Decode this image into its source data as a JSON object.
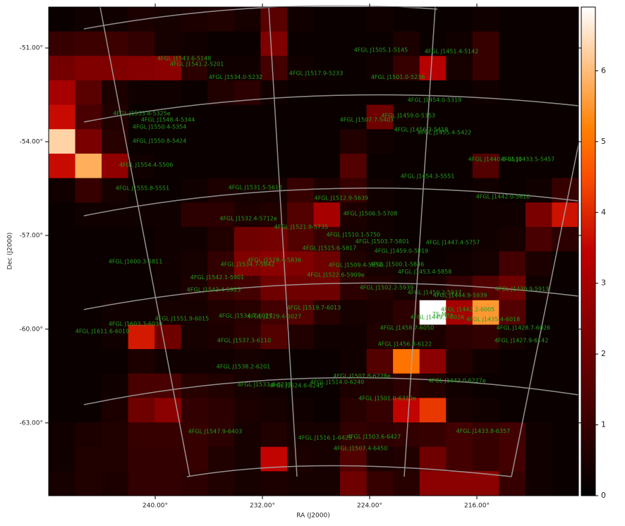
{
  "chart_data": {
    "type": "heatmap",
    "xlabel": "RA (J2000)",
    "ylabel": "Dec (J2000)",
    "xlim": [
      247.95,
      208.42
    ],
    "ylim": [
      -49.69,
      -65.33
    ],
    "xticks": [
      {
        "value": 240,
        "label": "240.00°"
      },
      {
        "value": 232,
        "label": "232.00°"
      },
      {
        "value": 224,
        "label": "224.00°"
      },
      {
        "value": 216,
        "label": "216.00°"
      }
    ],
    "yticks": [
      {
        "value": -51,
        "label": "-51.00°"
      },
      {
        "value": -54,
        "label": "-54.00°"
      },
      {
        "value": -57,
        "label": "-57.00°"
      },
      {
        "value": -60,
        "label": "-60.00°"
      },
      {
        "value": -63,
        "label": "-63.00°"
      }
    ],
    "colormap": "gist_heat",
    "zlim": [
      0,
      6.9
    ],
    "zticks": [
      0,
      1,
      2,
      3,
      4,
      5,
      6
    ],
    "z": [
      [
        0.2,
        0.3,
        0.3,
        0.5,
        0.4,
        0.5,
        0.6,
        0.4,
        1.6,
        0.3,
        0.2,
        0.2,
        0.3,
        0.2,
        0.2,
        0.2,
        0.3,
        0.2,
        0.2,
        0.2
      ],
      [
        1.0,
        1.1,
        1.1,
        0.9,
        0.4,
        0.3,
        0.2,
        0.2,
        2.3,
        0.2,
        0.2,
        0.2,
        0.2,
        0.5,
        0.2,
        0.3,
        1.0,
        0.2,
        0.2,
        0.2
      ],
      [
        2.1,
        2.3,
        2.3,
        2.4,
        2.5,
        0.8,
        0.3,
        0.3,
        1.2,
        0.3,
        0.2,
        0.2,
        0.3,
        1.0,
        3.3,
        0.4,
        1.0,
        0.2,
        0.2,
        0.2
      ],
      [
        3.0,
        1.6,
        0.5,
        0.3,
        0.3,
        0.2,
        0.6,
        0.8,
        0.3,
        0.2,
        0.2,
        0.2,
        0.2,
        0.2,
        0.2,
        0.2,
        0.3,
        0.2,
        0.2,
        0.2
      ],
      [
        3.6,
        1.3,
        0.6,
        0.2,
        0.2,
        0.2,
        0.2,
        0.2,
        0.2,
        0.2,
        0.2,
        0.2,
        2.0,
        0.3,
        0.2,
        0.2,
        0.2,
        0.2,
        0.2,
        0.2
      ],
      [
        6.3,
        2.2,
        0.7,
        0.2,
        0.2,
        0.2,
        0.2,
        0.2,
        0.2,
        0.2,
        0.2,
        0.6,
        0.3,
        0.2,
        0.2,
        0.2,
        0.2,
        0.2,
        0.2,
        0.2
      ],
      [
        3.6,
        5.8,
        2.6,
        0.3,
        0.2,
        0.2,
        0.2,
        0.2,
        0.2,
        0.2,
        0.2,
        1.5,
        0.2,
        0.2,
        0.2,
        0.2,
        1.5,
        0.2,
        0.2,
        0.2
      ],
      [
        0.3,
        1.0,
        0.4,
        0.2,
        0.2,
        0.3,
        0.5,
        0.4,
        0.4,
        1.0,
        0.5,
        1.0,
        0.3,
        0.2,
        0.2,
        0.2,
        0.3,
        0.2,
        0.3,
        1.0
      ],
      [
        0.2,
        0.3,
        0.3,
        0.3,
        0.3,
        0.8,
        0.8,
        0.5,
        0.6,
        1.5,
        3.0,
        0.5,
        0.3,
        0.2,
        0.2,
        0.2,
        0.3,
        0.3,
        2.2,
        3.7
      ],
      [
        0.2,
        0.2,
        0.2,
        0.2,
        0.3,
        0.3,
        0.6,
        2.0,
        2.1,
        1.5,
        1.0,
        0.4,
        0.3,
        0.2,
        0.2,
        0.2,
        0.3,
        0.4,
        1.3,
        0.8
      ],
      [
        0.2,
        0.2,
        0.2,
        0.2,
        0.3,
        0.4,
        0.9,
        2.3,
        2.5,
        2.3,
        2.0,
        0.6,
        0.4,
        0.3,
        0.2,
        0.3,
        0.4,
        1.2,
        0.5,
        0.2
      ],
      [
        0.2,
        0.2,
        0.2,
        0.2,
        0.3,
        0.5,
        1.0,
        1.2,
        2.0,
        2.0,
        2.0,
        0.8,
        0.6,
        0.4,
        0.5,
        0.9,
        1.5,
        2.0,
        0.3,
        0.2
      ],
      [
        0.2,
        0.2,
        0.3,
        0.3,
        0.4,
        0.4,
        0.6,
        0.7,
        1.2,
        1.5,
        0.7,
        0.4,
        0.5,
        0.8,
        6.9,
        3.0,
        5.5,
        1.5,
        0.2,
        0.2
      ],
      [
        0.2,
        0.2,
        0.3,
        3.8,
        2.0,
        0.4,
        0.5,
        0.8,
        1.5,
        0.6,
        0.3,
        0.3,
        0.6,
        0.6,
        0.5,
        0.8,
        0.9,
        0.4,
        0.2,
        0.2
      ],
      [
        0.2,
        0.2,
        0.2,
        0.5,
        0.3,
        0.3,
        0.3,
        0.4,
        0.3,
        0.2,
        0.2,
        0.3,
        1.5,
        5.0,
        2.5,
        0.6,
        0.3,
        0.2,
        0.2,
        0.2
      ],
      [
        0.2,
        0.2,
        0.3,
        1.3,
        1.3,
        0.7,
        0.6,
        0.4,
        0.3,
        0.2,
        0.2,
        0.5,
        0.6,
        0.8,
        0.6,
        0.3,
        0.2,
        0.2,
        0.2,
        0.2
      ],
      [
        0.2,
        0.2,
        0.5,
        2.0,
        2.5,
        0.9,
        0.8,
        0.5,
        0.4,
        0.3,
        0.2,
        0.7,
        1.0,
        3.5,
        4.2,
        0.4,
        0.3,
        0.2,
        0.2,
        0.2
      ],
      [
        0.3,
        0.5,
        0.6,
        1.0,
        1.0,
        1.0,
        0.8,
        0.4,
        0.6,
        0.4,
        0.4,
        0.9,
        0.8,
        0.9,
        1.0,
        1.2,
        1.0,
        1.2,
        0.3,
        0.2
      ],
      [
        0.3,
        0.6,
        0.6,
        0.9,
        0.9,
        1.0,
        0.6,
        0.4,
        3.5,
        0.5,
        0.4,
        1.5,
        0.5,
        0.6,
        2.0,
        1.2,
        1.0,
        1.2,
        0.3,
        0.2
      ],
      [
        0.4,
        0.6,
        0.5,
        0.9,
        0.9,
        0.8,
        0.6,
        0.4,
        0.5,
        0.4,
        0.4,
        2.0,
        1.0,
        0.7,
        2.5,
        2.5,
        2.5,
        1.0,
        0.3,
        0.2
      ]
    ],
    "annotations": [
      {
        "text": "4FGL J1543.6-5148",
        "ra": 237.84,
        "dec": -51.34
      },
      {
        "text": "4FGL J1541.2-5201",
        "ra": 236.89,
        "dec": -51.52
      },
      {
        "text": "4FGL J1534.0-5232",
        "ra": 234.0,
        "dec": -51.93
      },
      {
        "text": "4FGL J1517.9-5233",
        "ra": 228.0,
        "dec": -51.81
      },
      {
        "text": "4FGL J1505.1-5145",
        "ra": 223.16,
        "dec": -51.07
      },
      {
        "text": "4FGL J1451.4-5142",
        "ra": 217.89,
        "dec": -51.11
      },
      {
        "text": "4FGL J1501.0-5236",
        "ra": 221.89,
        "dec": -51.93
      },
      {
        "text": "4FGL J1454.0-5319",
        "ra": 219.16,
        "dec": -52.67
      },
      {
        "text": "4FGL J1553.8-5325e",
        "ra": 241.0,
        "dec": -53.1
      },
      {
        "text": "4FGL J1548.4-5344",
        "ra": 239.05,
        "dec": -53.3
      },
      {
        "text": "4FGL J1550.4-5354",
        "ra": 239.68,
        "dec": -53.53
      },
      {
        "text": "4FGL J1459.0-5353",
        "ra": 221.11,
        "dec": -53.17
      },
      {
        "text": "4FGL J1507.7-5403",
        "ra": 224.21,
        "dec": -53.3
      },
      {
        "text": "4FGL J1456.3-5418",
        "ra": 220.16,
        "dec": -53.62
      },
      {
        "text": "4FGL J1455.4-5422",
        "ra": 218.42,
        "dec": -53.71
      },
      {
        "text": "4FGL J1550.8-5424",
        "ra": 239.68,
        "dec": -53.98
      },
      {
        "text": "4FGL J1554.4-5506",
        "ra": 240.68,
        "dec": -54.75
      },
      {
        "text": "4FGL J1440.6-5510",
        "ra": 214.63,
        "dec": -54.57
      },
      {
        "text": "4FGL J1433.5-5457",
        "ra": 212.21,
        "dec": -54.57
      },
      {
        "text": "4FGL J1454.3-5551",
        "ra": 219.68,
        "dec": -55.11
      },
      {
        "text": "4FGL J1555.8-5551",
        "ra": 240.95,
        "dec": -55.49
      },
      {
        "text": "4FGL J1531.5-5612",
        "ra": 232.53,
        "dec": -55.47
      },
      {
        "text": "4FGL J1512.9-5639",
        "ra": 226.11,
        "dec": -55.81
      },
      {
        "text": "4FGL J1442.0-5616",
        "ra": 214.05,
        "dec": -55.76
      },
      {
        "text": "4FGL J1506.5-5708",
        "ra": 223.95,
        "dec": -56.3
      },
      {
        "text": "4FGL J1532.4-5712e",
        "ra": 233.05,
        "dec": -56.46
      },
      {
        "text": "4FGL J1521.9-5735",
        "ra": 229.11,
        "dec": -56.73
      },
      {
        "text": "4FGL J1510.1-5750",
        "ra": 225.21,
        "dec": -56.98
      },
      {
        "text": "4FGL J1503.7-5801",
        "ra": 223.05,
        "dec": -57.19
      },
      {
        "text": "4FGL J1447.4-5757",
        "ra": 217.79,
        "dec": -57.23
      },
      {
        "text": "4FGL J1515.6-5817",
        "ra": 227.0,
        "dec": -57.41
      },
      {
        "text": "4FGL J1459.0-5819",
        "ra": 221.63,
        "dec": -57.5
      },
      {
        "text": "4FGL J1600.3-5811",
        "ra": 241.47,
        "dec": -57.84
      },
      {
        "text": "4FGL J1528.4-5836",
        "ra": 231.11,
        "dec": -57.79
      },
      {
        "text": "4FGL J1534.7-5842",
        "ra": 233.11,
        "dec": -57.93
      },
      {
        "text": "4FGL J1509.4-5850",
        "ra": 225.05,
        "dec": -57.95
      },
      {
        "text": "4FGL J1500.1-5846",
        "ra": 221.95,
        "dec": -57.93
      },
      {
        "text": "4FGL J1453.4-5858",
        "ra": 219.89,
        "dec": -58.16
      },
      {
        "text": "4FGL J1522.6-5909e",
        "ra": 226.53,
        "dec": -58.27
      },
      {
        "text": "4FGL J1542.1-5901",
        "ra": 235.37,
        "dec": -58.34
      },
      {
        "text": "4FGL J1543.4-5925",
        "ra": 235.63,
        "dec": -58.74
      },
      {
        "text": "4FGL J1502.2-5939",
        "ra": 222.74,
        "dec": -58.67
      },
      {
        "text": "4FGL J1450.2-5937",
        "ra": 219.16,
        "dec": -58.83
      },
      {
        "text": "4FGL J1444.9-5939",
        "ra": 217.26,
        "dec": -58.92
      },
      {
        "text": "4FGL J1439.9-5913",
        "ra": 212.63,
        "dec": -58.72
      },
      {
        "text": "4FGL J1519.7-6013",
        "ra": 228.16,
        "dec": -59.31
      },
      {
        "text": "4FGL J1442.2-6005",
        "ra": 216.68,
        "dec": -59.37
      },
      {
        "text": "4FGL J1449.5-6026",
        "ra": 218.95,
        "dec": -59.62
      },
      {
        "text": "4FGL J1435.4-6018",
        "ra": 214.79,
        "dec": -59.69
      },
      {
        "text": "4FGL J1603.3-6030",
        "ra": 241.47,
        "dec": -59.83
      },
      {
        "text": "4FGL J1551.9-6015",
        "ra": 238.0,
        "dec": -59.67
      },
      {
        "text": "4FGL J1534.7-6027",
        "ra": 233.26,
        "dec": -59.58
      },
      {
        "text": "4FGL J1529.4-6027",
        "ra": 231.11,
        "dec": -59.6
      },
      {
        "text": "4FGL J1611.6-6019",
        "ra": 243.95,
        "dec": -60.07
      },
      {
        "text": "4FGL J1428.7-6026",
        "ra": 212.53,
        "dec": -59.96
      },
      {
        "text": "4FGL J1458.7-6050",
        "ra": 221.21,
        "dec": -59.96
      },
      {
        "text": "4FGL J1537.3-6110",
        "ra": 233.37,
        "dec": -60.37
      },
      {
        "text": "4FGL J1456.8-6122",
        "ra": 221.37,
        "dec": -60.48
      },
      {
        "text": "4FGL J1427.9-6142",
        "ra": 212.68,
        "dec": -60.37
      },
      {
        "text": "4FGL J1538.2-6201",
        "ra": 233.42,
        "dec": -61.2
      },
      {
        "text": "4FGL J1507.8-6228e",
        "ra": 224.58,
        "dec": -61.5
      },
      {
        "text": "4FGL J1514.0-6240",
        "ra": 226.42,
        "dec": -61.7
      },
      {
        "text": "4FGL J1533.6-6233",
        "ra": 231.84,
        "dec": -61.77
      },
      {
        "text": "4FGL J1524.6-6245",
        "ra": 229.47,
        "dec": -61.81
      },
      {
        "text": "4FGL J1443.0-6227e",
        "ra": 217.47,
        "dec": -61.65
      },
      {
        "text": "4FGL J1501.0-6310e",
        "ra": 222.68,
        "dec": -62.22
      },
      {
        "text": "4FGL J1547.9-6403",
        "ra": 235.53,
        "dec": -63.28
      },
      {
        "text": "4FGL J1516.1-6423",
        "ra": 227.32,
        "dec": -63.48
      },
      {
        "text": "4FGL J1503.6-6427",
        "ra": 223.68,
        "dec": -63.44
      },
      {
        "text": "4FGL J1433.8-6357",
        "ra": 215.53,
        "dec": -63.26
      },
      {
        "text": "4FGL J1507.4-6450",
        "ra": 224.68,
        "dec": -63.82
      },
      {
        "text": "TS Max",
        "ra": 218.53,
        "dec": -59.53
      }
    ]
  }
}
